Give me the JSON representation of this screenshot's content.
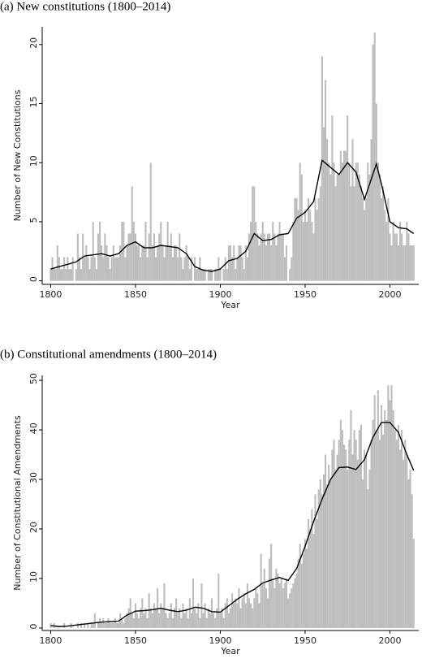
{
  "chart_data": [
    {
      "type": "bar",
      "title": "(a) New constitutions (1800–2014)",
      "xlabel": "Year",
      "ylabel": "Number of New Constitutions",
      "x": [
        1800,
        1801,
        1802,
        1803,
        1804,
        1805,
        1806,
        1807,
        1808,
        1809,
        1810,
        1811,
        1812,
        1813,
        1814,
        1815,
        1816,
        1817,
        1818,
        1819,
        1820,
        1821,
        1822,
        1823,
        1824,
        1825,
        1826,
        1827,
        1828,
        1829,
        1830,
        1831,
        1832,
        1833,
        1834,
        1835,
        1836,
        1837,
        1838,
        1839,
        1840,
        1841,
        1842,
        1843,
        1844,
        1845,
        1846,
        1847,
        1848,
        1849,
        1850,
        1851,
        1852,
        1853,
        1854,
        1855,
        1856,
        1857,
        1858,
        1859,
        1860,
        1861,
        1862,
        1863,
        1864,
        1865,
        1866,
        1867,
        1868,
        1869,
        1870,
        1871,
        1872,
        1873,
        1874,
        1875,
        1876,
        1877,
        1878,
        1879,
        1880,
        1881,
        1882,
        1883,
        1884,
        1885,
        1886,
        1887,
        1888,
        1889,
        1890,
        1891,
        1892,
        1893,
        1894,
        1895,
        1896,
        1897,
        1898,
        1899,
        1900,
        1901,
        1902,
        1903,
        1904,
        1905,
        1906,
        1907,
        1908,
        1909,
        1910,
        1911,
        1912,
        1913,
        1914,
        1915,
        1916,
        1917,
        1918,
        1919,
        1920,
        1921,
        1922,
        1923,
        1924,
        1925,
        1926,
        1927,
        1928,
        1929,
        1930,
        1931,
        1932,
        1933,
        1934,
        1935,
        1936,
        1937,
        1938,
        1939,
        1940,
        1941,
        1942,
        1943,
        1944,
        1945,
        1946,
        1947,
        1948,
        1949,
        1950,
        1951,
        1952,
        1953,
        1954,
        1955,
        1956,
        1957,
        1958,
        1959,
        1960,
        1961,
        1962,
        1963,
        1964,
        1965,
        1966,
        1967,
        1968,
        1969,
        1970,
        1971,
        1972,
        1973,
        1974,
        1975,
        1976,
        1977,
        1978,
        1979,
        1980,
        1981,
        1982,
        1983,
        1984,
        1985,
        1986,
        1987,
        1988,
        1989,
        1990,
        1991,
        1992,
        1993,
        1994,
        1995,
        1996,
        1997,
        1998,
        1999,
        2000,
        2001,
        2002,
        2003,
        2004,
        2005,
        2006,
        2007,
        2008,
        2009,
        2010,
        2011,
        2012,
        2013,
        2014
      ],
      "xlim": [
        1795,
        2017
      ],
      "xticks": [
        1800,
        1850,
        1900,
        1950,
        2000
      ],
      "ylim": [
        -0.3,
        21.5
      ],
      "yticks": [
        0,
        5,
        10,
        15,
        20
      ],
      "series": [
        {
          "type": "bar",
          "color": "#bdbdbd",
          "values": [
            1,
            2,
            1,
            1,
            3,
            2,
            1,
            1,
            2,
            1,
            2,
            1,
            1,
            2,
            0,
            1,
            4,
            2,
            1,
            4,
            2,
            3,
            2,
            1,
            2,
            5,
            2,
            1,
            4,
            5,
            3,
            2,
            4,
            3,
            2,
            1,
            2,
            3,
            2,
            2,
            2,
            3,
            5,
            5,
            2,
            3,
            4,
            4,
            8,
            5,
            4,
            3,
            3,
            2,
            3,
            3,
            5,
            2,
            4,
            10,
            3,
            4,
            2,
            3,
            4,
            5,
            3,
            2,
            3,
            5,
            3,
            4,
            2,
            3,
            3,
            2,
            4,
            2,
            1,
            2,
            3,
            2,
            1,
            2,
            0,
            2,
            1,
            1,
            2,
            1,
            1,
            1,
            0,
            1,
            1,
            1,
            0,
            1,
            1,
            2,
            1,
            0,
            1,
            2,
            1,
            3,
            3,
            2,
            3,
            1,
            2,
            3,
            3,
            2,
            1,
            3,
            2,
            4,
            5,
            8,
            8,
            5,
            4,
            3,
            4,
            5,
            4,
            3,
            4,
            4,
            3,
            5,
            4,
            3,
            4,
            5,
            4,
            4,
            2,
            3,
            0,
            1,
            2,
            5,
            7,
            7,
            6,
            10,
            9,
            5,
            6,
            5,
            7,
            6,
            5,
            4,
            7,
            6,
            7,
            8,
            19,
            13,
            17,
            12,
            10,
            9,
            14,
            10,
            8,
            9,
            9,
            11,
            10,
            11,
            11,
            14,
            10,
            8,
            12,
            8,
            10,
            10,
            9,
            8,
            7,
            6,
            7,
            10,
            9,
            12,
            20,
            21,
            15,
            10,
            9,
            7,
            8,
            6,
            5,
            7,
            4,
            3,
            5,
            4,
            4,
            3,
            5,
            4,
            3,
            3,
            5,
            4,
            3,
            3,
            3
          ]
        },
        {
          "type": "line",
          "color": "#000000",
          "x": [
            1800,
            1805,
            1810,
            1815,
            1820,
            1825,
            1830,
            1835,
            1840,
            1845,
            1850,
            1855,
            1860,
            1865,
            1870,
            1875,
            1880,
            1885,
            1890,
            1895,
            1900,
            1905,
            1910,
            1915,
            1920,
            1925,
            1930,
            1935,
            1940,
            1945,
            1950,
            1955,
            1960,
            1965,
            1970,
            1975,
            1980,
            1985,
            1992,
            1995,
            2000,
            2005,
            2010,
            2014
          ],
          "values": [
            1,
            1.2,
            1.4,
            1.6,
            2.1,
            2.2,
            2.3,
            2.1,
            2.3,
            3,
            3.3,
            2.8,
            2.8,
            3,
            2.9,
            2.8,
            2.3,
            1.2,
            0.9,
            0.8,
            1,
            1.7,
            1.9,
            2.5,
            4,
            3.4,
            3.5,
            3.9,
            4,
            5.3,
            5.8,
            6.7,
            10.2,
            9.6,
            9,
            10,
            9.2,
            6.9,
            9.9,
            8.2,
            5,
            4.5,
            4.4,
            4
          ]
        }
      ]
    },
    {
      "type": "bar",
      "title": "(b) Constitutional amendments (1800–2014)",
      "xlabel": "Year",
      "ylabel": "Number of Constitutional Amendments",
      "x": [
        1800,
        1801,
        1802,
        1803,
        1804,
        1805,
        1806,
        1807,
        1808,
        1809,
        1810,
        1811,
        1812,
        1813,
        1814,
        1815,
        1816,
        1817,
        1818,
        1819,
        1820,
        1821,
        1822,
        1823,
        1824,
        1825,
        1826,
        1827,
        1828,
        1829,
        1830,
        1831,
        1832,
        1833,
        1834,
        1835,
        1836,
        1837,
        1838,
        1839,
        1840,
        1841,
        1842,
        1843,
        1844,
        1845,
        1846,
        1847,
        1848,
        1849,
        1850,
        1851,
        1852,
        1853,
        1854,
        1855,
        1856,
        1857,
        1858,
        1859,
        1860,
        1861,
        1862,
        1863,
        1864,
        1865,
        1866,
        1867,
        1868,
        1869,
        1870,
        1871,
        1872,
        1873,
        1874,
        1875,
        1876,
        1877,
        1878,
        1879,
        1880,
        1881,
        1882,
        1883,
        1884,
        1885,
        1886,
        1887,
        1888,
        1889,
        1890,
        1891,
        1892,
        1893,
        1894,
        1895,
        1896,
        1897,
        1898,
        1899,
        1900,
        1901,
        1902,
        1903,
        1904,
        1905,
        1906,
        1907,
        1908,
        1909,
        1910,
        1911,
        1912,
        1913,
        1914,
        1915,
        1916,
        1917,
        1918,
        1919,
        1920,
        1921,
        1922,
        1923,
        1924,
        1925,
        1926,
        1927,
        1928,
        1929,
        1930,
        1931,
        1932,
        1933,
        1934,
        1935,
        1936,
        1937,
        1938,
        1939,
        1940,
        1941,
        1942,
        1943,
        1944,
        1945,
        1946,
        1947,
        1948,
        1949,
        1950,
        1951,
        1952,
        1953,
        1954,
        1955,
        1956,
        1957,
        1958,
        1959,
        1960,
        1961,
        1962,
        1963,
        1964,
        1965,
        1966,
        1967,
        1968,
        1969,
        1970,
        1971,
        1972,
        1973,
        1974,
        1975,
        1976,
        1977,
        1978,
        1979,
        1980,
        1981,
        1982,
        1983,
        1984,
        1985,
        1986,
        1987,
        1988,
        1989,
        1990,
        1991,
        1992,
        1993,
        1994,
        1995,
        1996,
        1997,
        1998,
        1999,
        2000,
        2001,
        2002,
        2003,
        2004,
        2005,
        2006,
        2007,
        2008,
        2009,
        2010,
        2011,
        2012,
        2013,
        2014
      ],
      "xlim": [
        1795,
        2017
      ],
      "xticks": [
        1800,
        1850,
        1900,
        1950,
        2000
      ],
      "ylim": [
        -0.5,
        51
      ],
      "yticks": [
        0,
        10,
        20,
        30,
        40,
        50
      ],
      "series": [
        {
          "type": "bar",
          "color": "#bdbdbd",
          "values": [
            1,
            0,
            1,
            0,
            0,
            0,
            0,
            0,
            1,
            0,
            0,
            0,
            1,
            0,
            0,
            0,
            1,
            0,
            1,
            0,
            1,
            0,
            1,
            0,
            1,
            1,
            3,
            0,
            1,
            2,
            1,
            2,
            1,
            1,
            2,
            1,
            1,
            1,
            2,
            1,
            1,
            3,
            2,
            1,
            2,
            3,
            4,
            6,
            3,
            2,
            5,
            3,
            2,
            4,
            6,
            3,
            4,
            2,
            7,
            4,
            3,
            5,
            4,
            8,
            3,
            5,
            4,
            9,
            3,
            2,
            3,
            5,
            2,
            4,
            6,
            3,
            4,
            2,
            5,
            3,
            4,
            2,
            6,
            3,
            10,
            4,
            3,
            5,
            2,
            9,
            3,
            5,
            2,
            4,
            3,
            6,
            3,
            2,
            4,
            11,
            3,
            4,
            2,
            5,
            6,
            3,
            4,
            7,
            5,
            6,
            5,
            8,
            4,
            6,
            7,
            5,
            9,
            6,
            5,
            4,
            6,
            8,
            7,
            5,
            15,
            9,
            12,
            8,
            6,
            14,
            17,
            10,
            8,
            12,
            11,
            9,
            10,
            8,
            9,
            10,
            6,
            7,
            8,
            9,
            10,
            11,
            14,
            17,
            13,
            15,
            18,
            16,
            22,
            20,
            24,
            19,
            27,
            22,
            28,
            30,
            27,
            31,
            35,
            29,
            33,
            30,
            36,
            38,
            32,
            35,
            38,
            42,
            40,
            37,
            36,
            32,
            38,
            44,
            35,
            40,
            38,
            34,
            40,
            41,
            30,
            36,
            35,
            28,
            32,
            38,
            42,
            47,
            40,
            48,
            38,
            45,
            39,
            44,
            42,
            49,
            46,
            49,
            44,
            40,
            38,
            41,
            36,
            40,
            34,
            38,
            35,
            30,
            32,
            27,
            18
          ]
        },
        {
          "type": "line",
          "color": "#000000",
          "x": [
            1800,
            1805,
            1810,
            1815,
            1820,
            1825,
            1830,
            1835,
            1840,
            1845,
            1850,
            1855,
            1860,
            1865,
            1870,
            1875,
            1880,
            1885,
            1890,
            1895,
            1900,
            1905,
            1910,
            1915,
            1920,
            1925,
            1930,
            1935,
            1940,
            1945,
            1950,
            1955,
            1960,
            1965,
            1970,
            1975,
            1980,
            1985,
            1990,
            1995,
            2000,
            2005,
            2010,
            2014
          ],
          "values": [
            0.5,
            0.3,
            0.4,
            0.6,
            0.8,
            1,
            1.2,
            1.3,
            1.4,
            2.6,
            3.4,
            3.5,
            3.7,
            4,
            3.6,
            3.3,
            3.6,
            4.2,
            4,
            3.3,
            3.2,
            4.5,
            5.8,
            6.9,
            7.8,
            9.1,
            9.7,
            10.2,
            9.6,
            12,
            16.5,
            21.5,
            26,
            30,
            32.4,
            32.5,
            32,
            34,
            38.5,
            41.5,
            41.5,
            39.5,
            35,
            31.8
          ]
        }
      ]
    }
  ]
}
